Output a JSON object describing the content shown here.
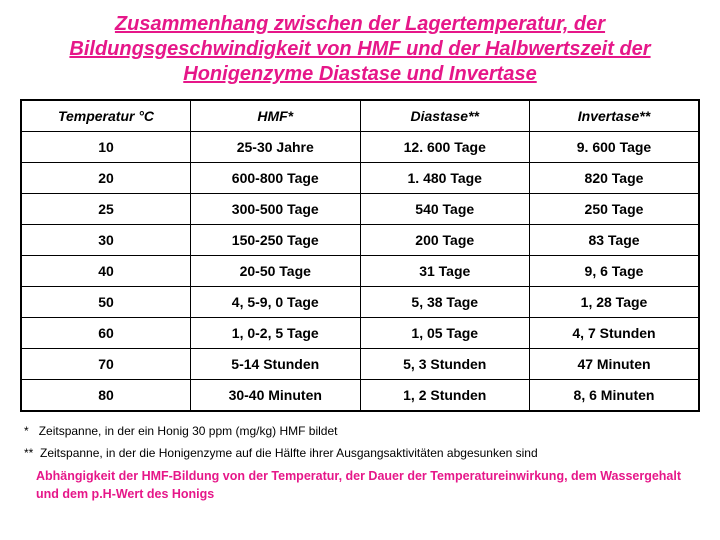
{
  "title_color": "#e61789",
  "background_color": "#ffffff",
  "title": "Zusammenhang zwischen der Lagertemperatur, der Bildungsgeschwindigkeit von HMF und der Halbwertszeit der Honigenzyme Diastase und Invertase",
  "table": {
    "columns": [
      "Temperatur °C",
      "HMF*",
      "Diastase**",
      "Invertase**"
    ],
    "rows": [
      [
        "10",
        "25-30 Jahre",
        "12. 600 Tage",
        "9. 600 Tage"
      ],
      [
        "20",
        "600-800 Tage",
        "1. 480 Tage",
        "820 Tage"
      ],
      [
        "25",
        "300-500 Tage",
        "540 Tage",
        "250 Tage"
      ],
      [
        "30",
        "150-250 Tage",
        "200 Tage",
        "83 Tage"
      ],
      [
        "40",
        "20-50 Tage",
        "31 Tage",
        "9, 6 Tage"
      ],
      [
        "50",
        "4, 5-9, 0 Tage",
        "5, 38 Tage",
        "1, 28 Tage"
      ],
      [
        "60",
        "1, 0-2, 5 Tage",
        "1, 05 Tage",
        "4, 7 Stunden"
      ],
      [
        "70",
        "5-14 Stunden",
        "5, 3 Stunden",
        "47 Minuten"
      ],
      [
        "80",
        "30-40 Minuten",
        "1, 2 Stunden",
        "8, 6 Minuten"
      ]
    ],
    "border_color": "#000000",
    "header_fontstyle": "italic bold",
    "cell_fontweight": "bold",
    "cell_fontsize": 14
  },
  "footnote1_marker": "*",
  "footnote1_text": "Zeitspanne, in der ein Honig 30 ppm (mg/kg) HMF bildet",
  "footnote2_marker": "**",
  "footnote2_text": "Zeitspanne, in der die Honigenzyme auf die Hälfte ihrer Ausgangsaktivitäten abgesunken sind",
  "conclusion": "Abhängigkeit der HMF-Bildung von der Temperatur, der Dauer der Temperatureinwirkung, dem Wassergehalt und dem p.H-Wert des Honigs"
}
